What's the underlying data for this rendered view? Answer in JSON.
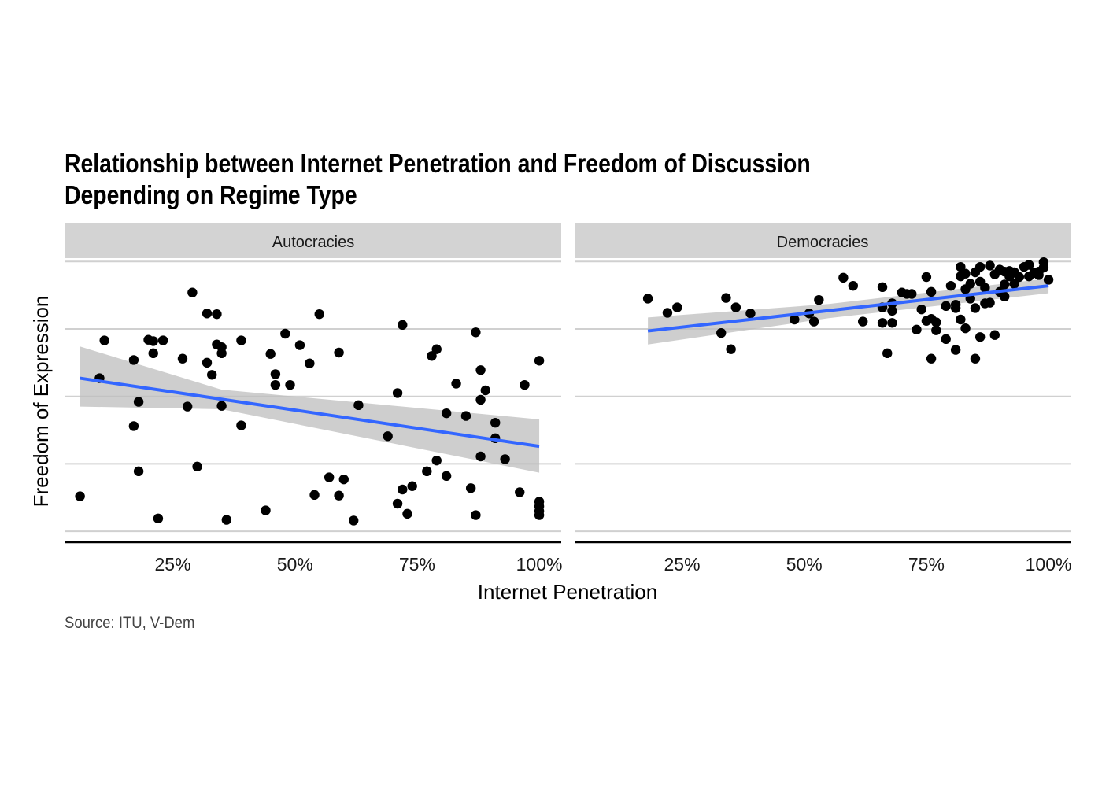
{
  "title_lines": [
    "Relationship between Internet Penetration and Freedom of Discussion",
    "Depending on Regime Type"
  ],
  "caption": "Source: ITU, V-Dem",
  "colors": {
    "points": "#000000",
    "trend": "#3366FF",
    "ribbon": "#BEBEBE",
    "strip": "#D3D3D3",
    "grid": "#D0D0D0",
    "axis": "#000000"
  },
  "chart_data": {
    "type": "scatter",
    "xlabel": "Internet Penetration",
    "ylabel": "Freedom of Expression",
    "x_ticks": [
      25,
      50,
      75,
      100
    ],
    "x_tick_labels": [
      "25%",
      "50%",
      "75%",
      "100%"
    ],
    "y_gridlines": [
      0,
      1,
      2,
      3,
      4
    ],
    "y_tick_labels_shown": false,
    "xlim": [
      3,
      104.5
    ],
    "ylim": [
      -0.15,
      4.05
    ],
    "grid": "horizontal",
    "trend": "linear fit with confidence band",
    "panels": [
      {
        "name": "Autocracies",
        "points": [
          [
            6,
            0.52
          ],
          [
            10,
            2.27
          ],
          [
            11,
            2.83
          ],
          [
            17,
            2.54
          ],
          [
            18,
            1.92
          ],
          [
            17,
            1.56
          ],
          [
            18,
            0.89
          ],
          [
            20,
            2.84
          ],
          [
            21,
            2.64
          ],
          [
            21,
            2.82
          ],
          [
            22,
            0.19
          ],
          [
            23,
            2.83
          ],
          [
            27,
            2.56
          ],
          [
            28,
            1.85
          ],
          [
            29,
            3.54
          ],
          [
            30,
            0.96
          ],
          [
            32,
            2.5
          ],
          [
            32,
            3.23
          ],
          [
            33,
            2.32
          ],
          [
            34,
            3.22
          ],
          [
            34,
            2.77
          ],
          [
            35,
            2.64
          ],
          [
            35,
            2.73
          ],
          [
            35,
            1.86
          ],
          [
            36,
            0.17
          ],
          [
            39,
            2.83
          ],
          [
            39,
            1.57
          ],
          [
            44,
            0.31
          ],
          [
            45,
            2.63
          ],
          [
            46,
            2.33
          ],
          [
            46,
            2.17
          ],
          [
            48,
            2.93
          ],
          [
            49,
            2.17
          ],
          [
            51,
            2.76
          ],
          [
            53,
            2.49
          ],
          [
            54,
            0.54
          ],
          [
            55,
            3.22
          ],
          [
            57,
            0.8
          ],
          [
            59,
            0.53
          ],
          [
            59,
            2.65
          ],
          [
            60,
            0.77
          ],
          [
            62,
            0.16
          ],
          [
            63,
            1.87
          ],
          [
            69,
            1.41
          ],
          [
            71,
            0.41
          ],
          [
            71,
            2.05
          ],
          [
            72,
            0.62
          ],
          [
            72,
            3.06
          ],
          [
            73,
            0.26
          ],
          [
            74,
            0.67
          ],
          [
            77,
            0.89
          ],
          [
            78,
            2.6
          ],
          [
            79,
            2.7
          ],
          [
            79,
            1.05
          ],
          [
            81,
            0.82
          ],
          [
            81,
            1.75
          ],
          [
            83,
            2.19
          ],
          [
            85,
            1.71
          ],
          [
            86,
            0.64
          ],
          [
            87,
            0.24
          ],
          [
            87,
            2.95
          ],
          [
            88,
            2.39
          ],
          [
            88,
            1.11
          ],
          [
            88,
            1.95
          ],
          [
            89,
            2.09
          ],
          [
            91,
            1.61
          ],
          [
            91,
            1.38
          ],
          [
            93,
            1.07
          ],
          [
            96,
            0.58
          ],
          [
            97,
            2.17
          ],
          [
            100,
            2.53
          ],
          [
            100,
            0.44
          ],
          [
            100,
            0.37
          ],
          [
            100,
            0.3
          ],
          [
            100,
            0.24
          ]
        ],
        "fit": {
          "x": [
            6,
            100
          ],
          "y": [
            2.27,
            1.26
          ]
        },
        "band": {
          "x": [
            6,
            35,
            100
          ],
          "lower": [
            1.85,
            1.81,
            0.87
          ],
          "upper": [
            2.74,
            2.1,
            1.66
          ]
        }
      },
      {
        "name": "Democracies",
        "points": [
          [
            18,
            3.45
          ],
          [
            22,
            3.24
          ],
          [
            24,
            3.32
          ],
          [
            33,
            2.94
          ],
          [
            34,
            3.46
          ],
          [
            35,
            2.7
          ],
          [
            36,
            3.32
          ],
          [
            39,
            3.23
          ],
          [
            48,
            3.14
          ],
          [
            51,
            3.23
          ],
          [
            52,
            3.11
          ],
          [
            53,
            3.43
          ],
          [
            58,
            3.76
          ],
          [
            60,
            3.64
          ],
          [
            62,
            3.11
          ],
          [
            66,
            3.62
          ],
          [
            66,
            3.32
          ],
          [
            66,
            3.09
          ],
          [
            67,
            2.64
          ],
          [
            68,
            3.38
          ],
          [
            68,
            3.27
          ],
          [
            68,
            3.09
          ],
          [
            70,
            3.54
          ],
          [
            71,
            3.52
          ],
          [
            72,
            3.52
          ],
          [
            73,
            2.99
          ],
          [
            74,
            3.29
          ],
          [
            75,
            3.12
          ],
          [
            75,
            3.77
          ],
          [
            76,
            3.15
          ],
          [
            76,
            3.55
          ],
          [
            76,
            2.56
          ],
          [
            77,
            3.1
          ],
          [
            77,
            2.98
          ],
          [
            79,
            3.34
          ],
          [
            79,
            2.85
          ],
          [
            80,
            3.64
          ],
          [
            81,
            3.36
          ],
          [
            81,
            2.69
          ],
          [
            81,
            3.31
          ],
          [
            82,
            3.92
          ],
          [
            82,
            3.78
          ],
          [
            82,
            3.14
          ],
          [
            83,
            3.01
          ],
          [
            83,
            3.82
          ],
          [
            83,
            3.59
          ],
          [
            84,
            3.67
          ],
          [
            84,
            3.45
          ],
          [
            85,
            2.56
          ],
          [
            85,
            3.31
          ],
          [
            85,
            3.84
          ],
          [
            86,
            3.92
          ],
          [
            86,
            2.88
          ],
          [
            86,
            3.7
          ],
          [
            87,
            3.38
          ],
          [
            87,
            3.61
          ],
          [
            88,
            3.39
          ],
          [
            88,
            3.94
          ],
          [
            89,
            2.91
          ],
          [
            89,
            3.81
          ],
          [
            90,
            3.55
          ],
          [
            90,
            3.88
          ],
          [
            91,
            3.85
          ],
          [
            91,
            3.48
          ],
          [
            91,
            3.66
          ],
          [
            92,
            3.78
          ],
          [
            92,
            3.86
          ],
          [
            93,
            3.67
          ],
          [
            93,
            3.84
          ],
          [
            94,
            3.77
          ],
          [
            95,
            3.92
          ],
          [
            96,
            3.78
          ],
          [
            96,
            3.95
          ],
          [
            97,
            3.83
          ],
          [
            98,
            3.85
          ],
          [
            98,
            3.8
          ],
          [
            99,
            3.99
          ],
          [
            99,
            3.91
          ],
          [
            100,
            3.73
          ]
        ],
        "fit": {
          "x": [
            18,
            100
          ],
          "y": [
            2.97,
            3.64
          ]
        },
        "band": {
          "x": [
            18,
            55,
            100
          ],
          "lower": [
            2.77,
            3.16,
            3.53
          ],
          "upper": [
            3.17,
            3.37,
            3.75
          ]
        }
      }
    ]
  }
}
